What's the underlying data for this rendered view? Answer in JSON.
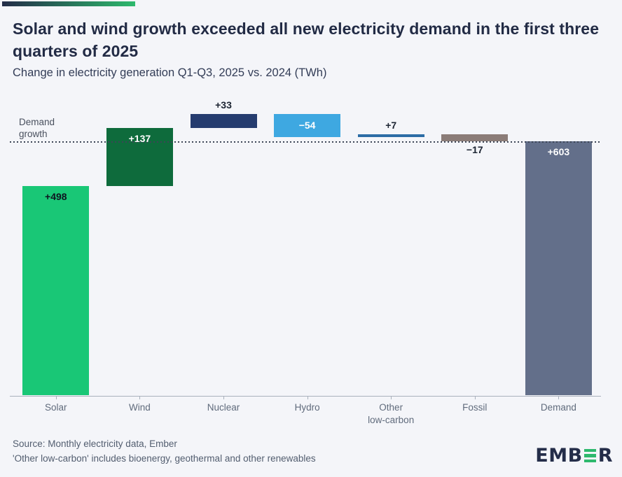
{
  "header": {
    "title": "Solar and wind growth exceeded all new electricity demand in the first three quarters of 2025",
    "subtitle": "Change in electricity generation Q1-Q3, 2025 vs. 2024 (TWh)"
  },
  "chart_data": {
    "type": "waterfall",
    "title": "Solar and wind growth exceeded all new electricity demand in the first three quarters of 2025",
    "subtitle": "Change in electricity generation Q1-Q3, 2025 vs. 2024 (TWh)",
    "unit": "TWh",
    "ylim": [
      0,
      680
    ],
    "grid": false,
    "categories": [
      "Solar",
      "Wind",
      "Nuclear",
      "Hydro",
      "Other low-carbon",
      "Fossil",
      "Demand"
    ],
    "items": [
      {
        "label": "Solar",
        "lines": "Solar",
        "value": 498,
        "display": "+498",
        "kind": "delta",
        "color": "#19c776",
        "value_label": {
          "placement": "inside-top",
          "color": "#0e1420"
        }
      },
      {
        "label": "Wind",
        "lines": "Wind",
        "value": 137,
        "display": "+137",
        "kind": "delta",
        "color": "#0e6b3c",
        "value_label": {
          "placement": "inside-top",
          "color": "#ffffff"
        }
      },
      {
        "label": "Nuclear",
        "lines": "Nuclear",
        "value": 33,
        "display": "+33",
        "kind": "delta",
        "color": "#253c6f",
        "value_label": {
          "placement": "above",
          "color": "#1c2432"
        }
      },
      {
        "label": "Hydro",
        "lines": "Hydro",
        "value": -54,
        "display": "−54",
        "kind": "delta",
        "color": "#3ea8e1",
        "value_label": {
          "placement": "inside-center",
          "color": "#ffffff"
        }
      },
      {
        "label": "Other low-carbon",
        "lines": "Other\nlow-carbon",
        "value": 7,
        "display": "+7",
        "kind": "delta",
        "color": "#2c6ca5",
        "value_label": {
          "placement": "above",
          "color": "#1c2432"
        }
      },
      {
        "label": "Fossil",
        "lines": "Fossil",
        "value": -17,
        "display": "−17",
        "kind": "delta",
        "color": "#8b7c78",
        "value_label": {
          "placement": "below",
          "color": "#1c2432"
        }
      },
      {
        "label": "Demand",
        "lines": "Demand",
        "value": 603,
        "display": "+603",
        "kind": "total",
        "color": "#636f8a",
        "value_label": {
          "placement": "inside-top",
          "color": "#ffffff"
        }
      }
    ],
    "reference_line": {
      "value": 603,
      "label": "Demand\ngrowth",
      "style": "dotted",
      "color": "#3c4555"
    },
    "legend": null
  },
  "footer": {
    "source": "Source: Monthly electricity data, Ember",
    "note": "'Other low-carbon' includes bioenergy, geothermal and other renewables"
  },
  "logo": {
    "part1": "EMB",
    "part2": "R",
    "alt": "EMBER"
  },
  "colors": {
    "background": "#f4f5f9",
    "accent_navy": "#232c48",
    "accent_green": "#2eb96d",
    "axis": "#a9b0bc",
    "axis_text": "#606b7c"
  }
}
